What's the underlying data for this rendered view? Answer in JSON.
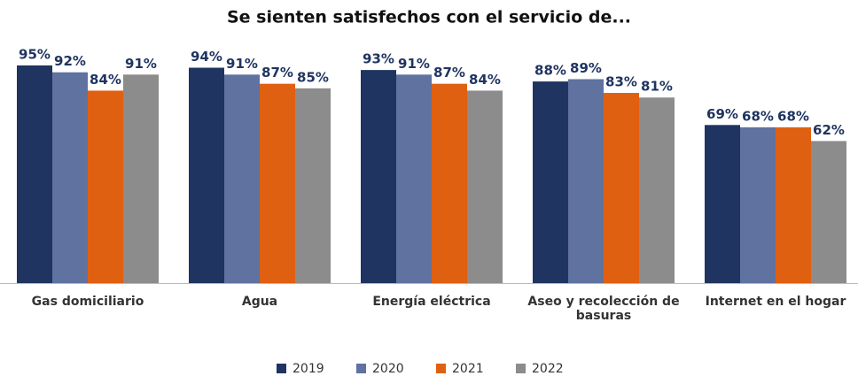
{
  "chart_data": {
    "type": "bar",
    "title": "Se sienten satisfechos con el servicio de...",
    "categories": [
      "Gas domiciliario",
      "Agua",
      "Energía eléctrica",
      "Aseo y recolección de basuras",
      "Internet en el hogar"
    ],
    "series": [
      {
        "name": "2019",
        "color": "#1f3461",
        "values": [
          95,
          94,
          93,
          88,
          69
        ],
        "value_labels": [
          "95%",
          "94%",
          "93%",
          "88%",
          "69%"
        ]
      },
      {
        "name": "2020",
        "color": "#5f72a0",
        "values": [
          92,
          91,
          91,
          89,
          68
        ],
        "value_labels": [
          "92%",
          "91%",
          "91%",
          "89%",
          "68%"
        ]
      },
      {
        "name": "2021",
        "color": "#e06012",
        "values": [
          84,
          87,
          87,
          83,
          68
        ],
        "value_labels": [
          "84%",
          "87%",
          "87%",
          "83%",
          "68%"
        ]
      },
      {
        "name": "2022",
        "color": "#8c8c8c",
        "values": [
          91,
          85,
          84,
          81,
          62
        ],
        "value_labels": [
          "91%",
          "85%",
          "84%",
          "81%",
          "62%"
        ]
      }
    ],
    "ylim": [
      0,
      100
    ],
    "legend": "bottom"
  }
}
